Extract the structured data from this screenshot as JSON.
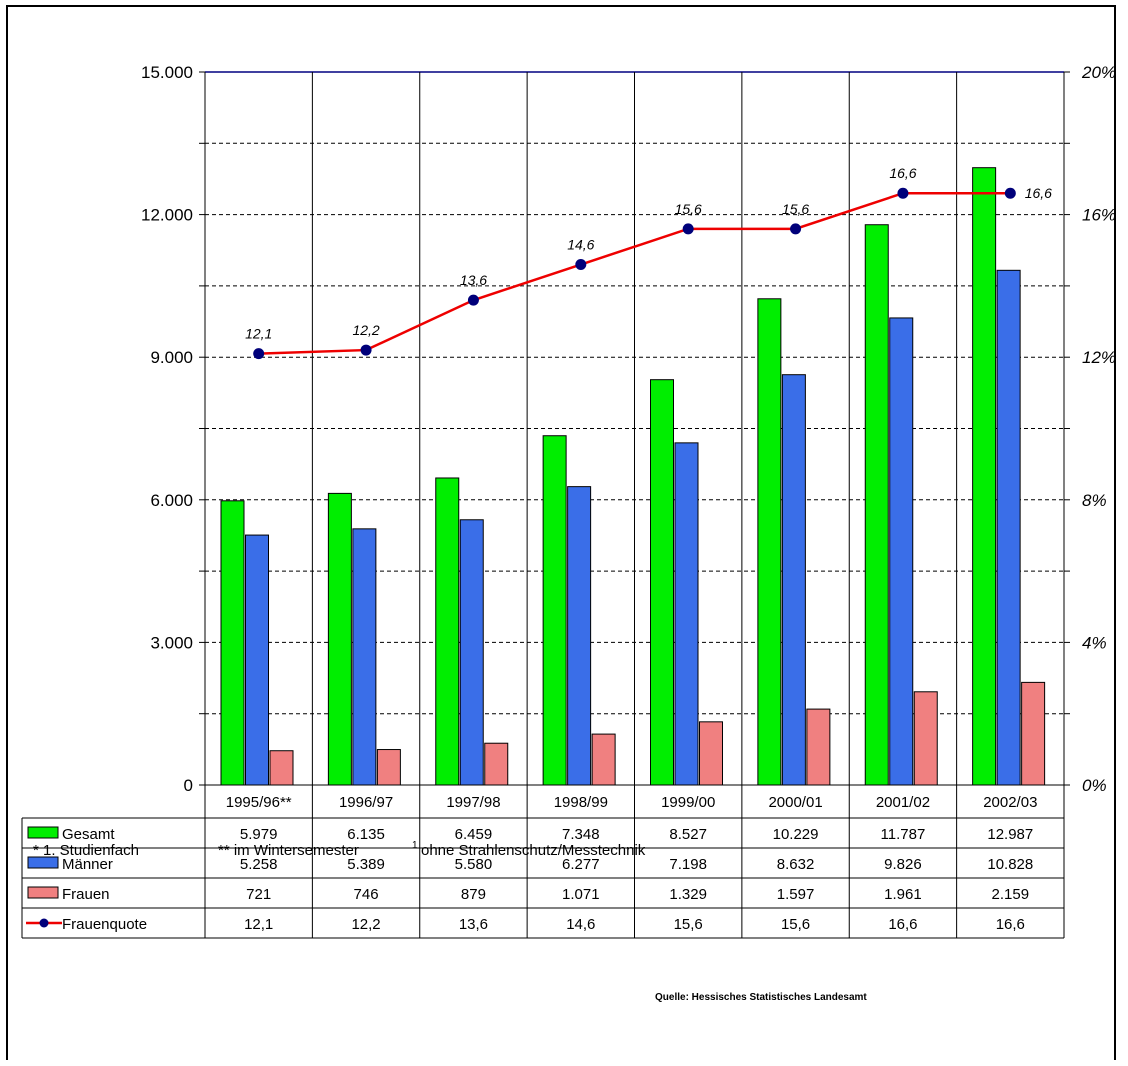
{
  "chart_data": {
    "type": "bar",
    "categories": [
      "1995/96**",
      "1996/97",
      "1997/98",
      "1998/99",
      "1999/00",
      "2000/01",
      "2001/02",
      "2002/03"
    ],
    "series": [
      {
        "name": "Gesamt",
        "color": "#00ee00",
        "values": [
          5979,
          6135,
          6459,
          7348,
          8527,
          10229,
          11787,
          12987
        ],
        "labels": [
          "5.979",
          "6.135",
          "6.459",
          "7.348",
          "8.527",
          "10.229",
          "11.787",
          "12.987"
        ]
      },
      {
        "name": "Männer",
        "color": "#3a6ee8",
        "values": [
          5258,
          5389,
          5580,
          6277,
          7198,
          8632,
          9826,
          10828
        ],
        "labels": [
          "5.258",
          "5.389",
          "5.580",
          "6.277",
          "7.198",
          "8.632",
          "9.826",
          "10.828"
        ]
      },
      {
        "name": "Frauen",
        "color": "#f08080",
        "values": [
          721,
          746,
          879,
          1071,
          1329,
          1597,
          1961,
          2159
        ],
        "labels": [
          "721",
          "746",
          "879",
          "1.071",
          "1.329",
          "1.597",
          "1.961",
          "2.159"
        ]
      }
    ],
    "line_series": {
      "name": "Frauenquote",
      "color": "#ee0000",
      "marker_color": "#00007a",
      "axis": "right",
      "values": [
        12.1,
        12.2,
        13.6,
        14.6,
        15.6,
        15.6,
        16.6,
        16.6
      ],
      "labels": [
        "12,1",
        "12,2",
        "13,6",
        "14,6",
        "15,6",
        "15,6",
        "16,6",
        "16,6"
      ]
    },
    "ylim": [
      0,
      15000
    ],
    "yticks": [
      "0",
      "3.000",
      "6.000",
      "9.000",
      "12.000",
      "15.000"
    ],
    "y2lim": [
      0,
      20
    ],
    "y2ticks": [
      "0%",
      "4%",
      "8%",
      "12%",
      "16%",
      "20%"
    ],
    "grid": "dashed horizontal, solid vertical separators",
    "legend": "data-table"
  },
  "footnotes": {
    "f1": "* 1. Studienfach",
    "f2": "** im Wintersemester",
    "f3_sup": "1",
    "f3": "ohne Strahlenschutz/Messtechnik"
  },
  "source": "Quelle: Hessisches Statistisches Landesamt"
}
